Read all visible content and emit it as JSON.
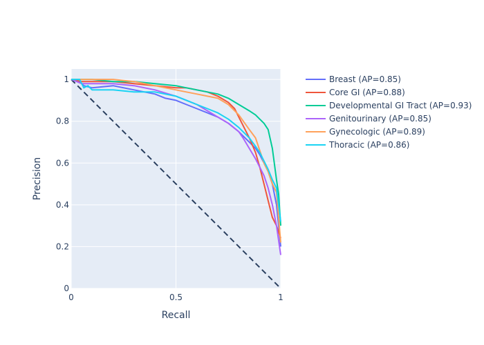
{
  "chart_data": {
    "type": "line",
    "xlabel": "Recall",
    "ylabel": "Precision",
    "xlim": [
      0,
      1
    ],
    "ylim": [
      0,
      1.05
    ],
    "x_ticks": [
      {
        "value": 0,
        "label": "0"
      },
      {
        "value": 0.5,
        "label": "0.5"
      },
      {
        "value": 1,
        "label": "1"
      }
    ],
    "y_ticks": [
      {
        "value": 0,
        "label": "0"
      },
      {
        "value": 0.2,
        "label": "0.2"
      },
      {
        "value": 0.4,
        "label": "0.4"
      },
      {
        "value": 0.6,
        "label": "0.6"
      },
      {
        "value": 0.8,
        "label": "0.8"
      },
      {
        "value": 1,
        "label": "1"
      }
    ],
    "grid": true,
    "legend_position": "right",
    "reference_line": {
      "style": "dashed",
      "color": "#2a3f5f",
      "x": [
        0,
        1
      ],
      "y": [
        1,
        0
      ]
    },
    "series": [
      {
        "name": "Breast (AP=0.85)",
        "color": "#636efa",
        "x": [
          0,
          0.04,
          0.06,
          0.1,
          0.2,
          0.3,
          0.35,
          0.4,
          0.45,
          0.5,
          0.55,
          0.6,
          0.65,
          0.7,
          0.75,
          0.8,
          0.85,
          0.88,
          0.9,
          0.92,
          0.94,
          0.96,
          0.98,
          1.0
        ],
        "y": [
          1.0,
          0.99,
          0.97,
          0.96,
          0.97,
          0.95,
          0.94,
          0.93,
          0.91,
          0.9,
          0.88,
          0.86,
          0.84,
          0.82,
          0.79,
          0.75,
          0.7,
          0.67,
          0.64,
          0.6,
          0.56,
          0.5,
          0.4,
          0.2
        ]
      },
      {
        "name": "Core GI (AP=0.88)",
        "color": "#ef553b",
        "x": [
          0,
          0.05,
          0.1,
          0.2,
          0.3,
          0.4,
          0.5,
          0.55,
          0.6,
          0.65,
          0.7,
          0.75,
          0.78,
          0.8,
          0.82,
          0.85,
          0.88,
          0.9,
          0.92,
          0.94,
          0.96,
          0.98,
          1.0
        ],
        "y": [
          1.0,
          0.99,
          0.99,
          0.99,
          0.98,
          0.97,
          0.96,
          0.96,
          0.95,
          0.94,
          0.92,
          0.89,
          0.86,
          0.82,
          0.78,
          0.72,
          0.65,
          0.58,
          0.5,
          0.42,
          0.34,
          0.3,
          0.24
        ]
      },
      {
        "name": "Developmental GI Tract (AP=0.93)",
        "color": "#00cc96",
        "x": [
          0,
          0.1,
          0.2,
          0.3,
          0.4,
          0.5,
          0.55,
          0.6,
          0.65,
          0.7,
          0.75,
          0.8,
          0.85,
          0.88,
          0.9,
          0.92,
          0.94,
          0.96,
          0.98,
          0.99,
          1.0
        ],
        "y": [
          1.0,
          1.0,
          0.99,
          0.99,
          0.98,
          0.97,
          0.96,
          0.95,
          0.94,
          0.93,
          0.91,
          0.88,
          0.85,
          0.83,
          0.81,
          0.79,
          0.76,
          0.67,
          0.52,
          0.45,
          0.3
        ]
      },
      {
        "name": "Genitourinary (AP=0.85)",
        "color": "#ab63fa",
        "x": [
          0,
          0.05,
          0.1,
          0.2,
          0.3,
          0.4,
          0.5,
          0.55,
          0.6,
          0.65,
          0.7,
          0.75,
          0.8,
          0.82,
          0.85,
          0.88,
          0.9,
          0.92,
          0.94,
          0.96,
          0.98,
          1.0
        ],
        "y": [
          1.0,
          0.98,
          0.98,
          0.98,
          0.97,
          0.95,
          0.92,
          0.9,
          0.88,
          0.85,
          0.82,
          0.79,
          0.75,
          0.72,
          0.67,
          0.62,
          0.58,
          0.54,
          0.48,
          0.4,
          0.3,
          0.16
        ]
      },
      {
        "name": "Gynecologic (AP=0.89)",
        "color": "#ffa15a",
        "x": [
          0,
          0.05,
          0.1,
          0.2,
          0.3,
          0.4,
          0.5,
          0.55,
          0.6,
          0.65,
          0.7,
          0.75,
          0.8,
          0.85,
          0.88,
          0.9,
          0.92,
          0.94,
          0.96,
          0.98,
          1.0
        ],
        "y": [
          1.0,
          1.0,
          1.0,
          1.0,
          0.99,
          0.97,
          0.95,
          0.94,
          0.93,
          0.92,
          0.91,
          0.88,
          0.83,
          0.76,
          0.72,
          0.66,
          0.6,
          0.56,
          0.5,
          0.46,
          0.22
        ]
      },
      {
        "name": "Thoracic (AP=0.86)",
        "color": "#19d3f3",
        "x": [
          0,
          0.04,
          0.06,
          0.08,
          0.1,
          0.2,
          0.3,
          0.4,
          0.5,
          0.55,
          0.6,
          0.65,
          0.7,
          0.75,
          0.8,
          0.85,
          0.88,
          0.9,
          0.92,
          0.94,
          0.96,
          0.98,
          1.0
        ],
        "y": [
          1.0,
          1.0,
          0.96,
          0.97,
          0.95,
          0.95,
          0.94,
          0.94,
          0.92,
          0.9,
          0.88,
          0.86,
          0.84,
          0.81,
          0.77,
          0.72,
          0.68,
          0.65,
          0.61,
          0.57,
          0.52,
          0.48,
          0.32
        ]
      }
    ]
  }
}
